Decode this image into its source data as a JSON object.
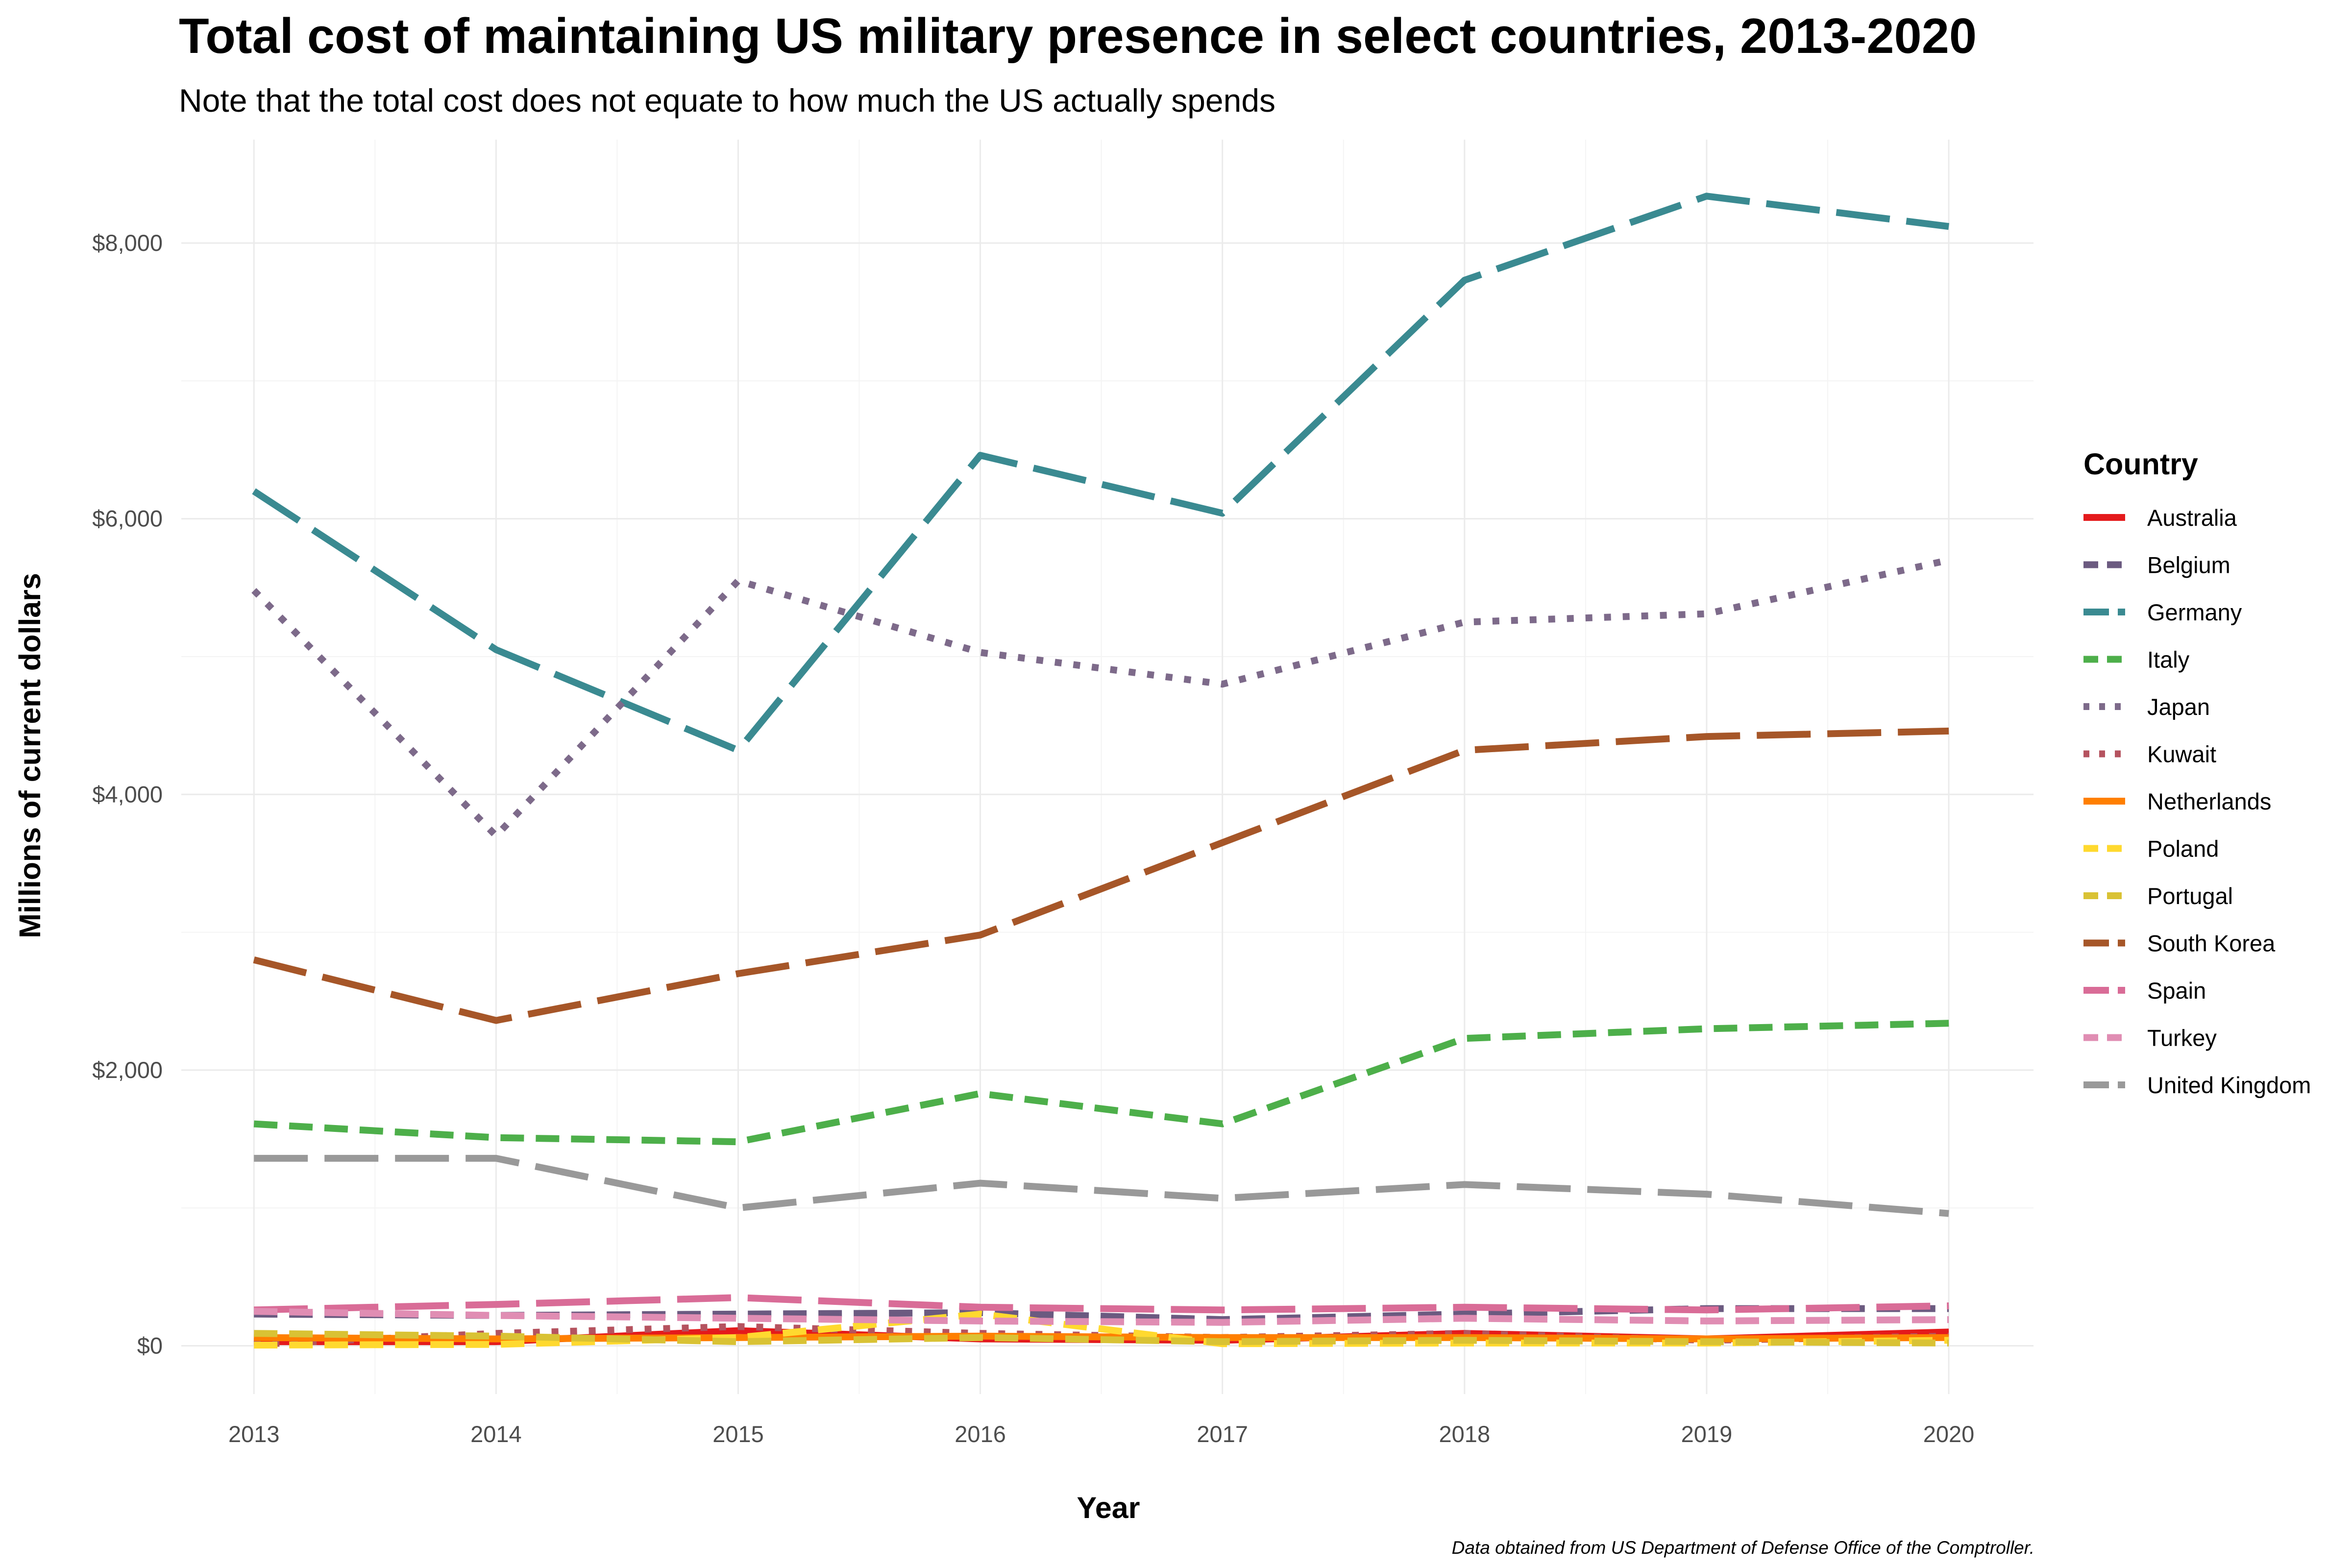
{
  "chart_data": {
    "type": "line",
    "title": "Total cost of maintaining US military presence in select countries, 2013-2020",
    "subtitle": "Note that the total cost does not equate to how much the US actually spends",
    "xlabel": "Year",
    "ylabel": "Millions of current dollars",
    "caption": "Data obtained from US Department of Defense Office of the Comptroller.",
    "legend_title": "Country",
    "legend_position": "right",
    "grid": true,
    "x": [
      2013,
      2014,
      2015,
      2016,
      2017,
      2018,
      2019,
      2020
    ],
    "xlim": [
      2012.7,
      2020.35
    ],
    "ylim": [
      -350,
      8750
    ],
    "yticks": [
      0,
      2000,
      4000,
      6000,
      8000
    ],
    "ytick_labels": [
      "$0",
      "$2,000",
      "$4,000",
      "$6,000",
      "$8,000"
    ],
    "series": [
      {
        "name": "Australia",
        "color": "#E41A1C",
        "dash": "solid",
        "values": [
          30,
          30,
          110,
          50,
          40,
          90,
          50,
          100
        ]
      },
      {
        "name": "Belgium",
        "color": "#6B5A80",
        "dash": "dash",
        "values": [
          230,
          220,
          230,
          240,
          190,
          230,
          270,
          270
        ]
      },
      {
        "name": "Germany",
        "color": "#3A8A91",
        "dash": "longdash",
        "values": [
          6200,
          5050,
          4320,
          6460,
          6040,
          7730,
          8340,
          8120
        ]
      },
      {
        "name": "Italy",
        "color": "#4DAF4A",
        "dash": "dash",
        "values": [
          1610,
          1510,
          1480,
          1830,
          1610,
          2230,
          2300,
          2340
        ]
      },
      {
        "name": "Japan",
        "color": "#7D6A8A",
        "dash": "dot",
        "values": [
          5480,
          3700,
          5550,
          5030,
          4800,
          5250,
          5310,
          5700
        ]
      },
      {
        "name": "Kuwait",
        "color": "#B5535F",
        "dash": "dot",
        "values": [
          10,
          90,
          140,
          90,
          60,
          90,
          40,
          70
        ]
      },
      {
        "name": "Netherlands",
        "color": "#FF7F00",
        "dash": "solid",
        "values": [
          60,
          50,
          60,
          70,
          60,
          60,
          50,
          60
        ]
      },
      {
        "name": "Poland",
        "color": "#FFD92F",
        "dash": "dash",
        "values": [
          5,
          10,
          60,
          230,
          15,
          20,
          20,
          40
        ]
      },
      {
        "name": "Portugal",
        "color": "#D9C234",
        "dash": "dash",
        "values": [
          90,
          70,
          30,
          60,
          30,
          40,
          30,
          20
        ]
      },
      {
        "name": "South Korea",
        "color": "#A65628",
        "dash": "longdash",
        "values": [
          2800,
          2360,
          2700,
          2980,
          3650,
          4320,
          4420,
          4460
        ]
      },
      {
        "name": "Spain",
        "color": "#D96C97",
        "dash": "longdash",
        "values": [
          260,
          300,
          350,
          280,
          260,
          280,
          260,
          290
        ]
      },
      {
        "name": "Turkey",
        "color": "#E08DB3",
        "dash": "dash",
        "values": [
          250,
          220,
          200,
          180,
          170,
          200,
          180,
          190
        ]
      },
      {
        "name": "United Kingdom",
        "color": "#999999",
        "dash": "longdash",
        "values": [
          1360,
          1360,
          1000,
          1180,
          1070,
          1170,
          1100,
          960
        ]
      }
    ]
  }
}
